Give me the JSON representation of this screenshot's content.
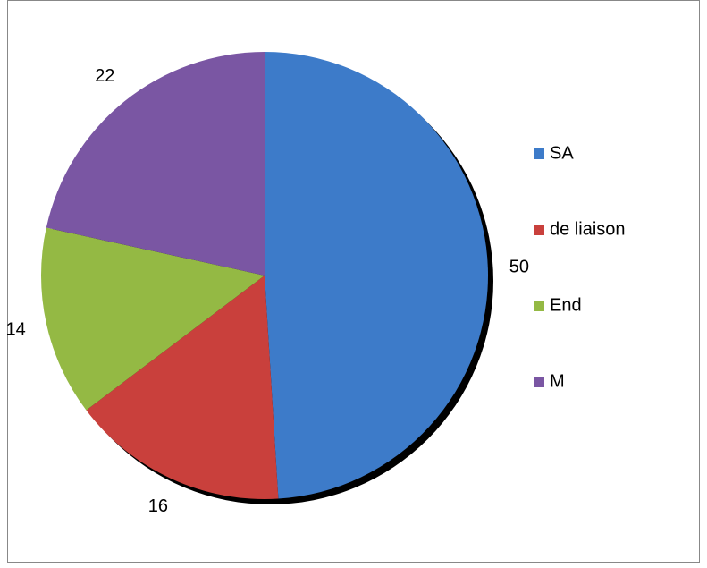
{
  "chart_data": {
    "type": "pie",
    "categories": [
      "SA",
      "de liaison",
      "End",
      "M"
    ],
    "values": [
      50,
      16,
      14,
      22
    ],
    "colors": [
      "#3d7bc9",
      "#c9403c",
      "#94b944",
      "#7a56a3"
    ],
    "legend": "right"
  }
}
